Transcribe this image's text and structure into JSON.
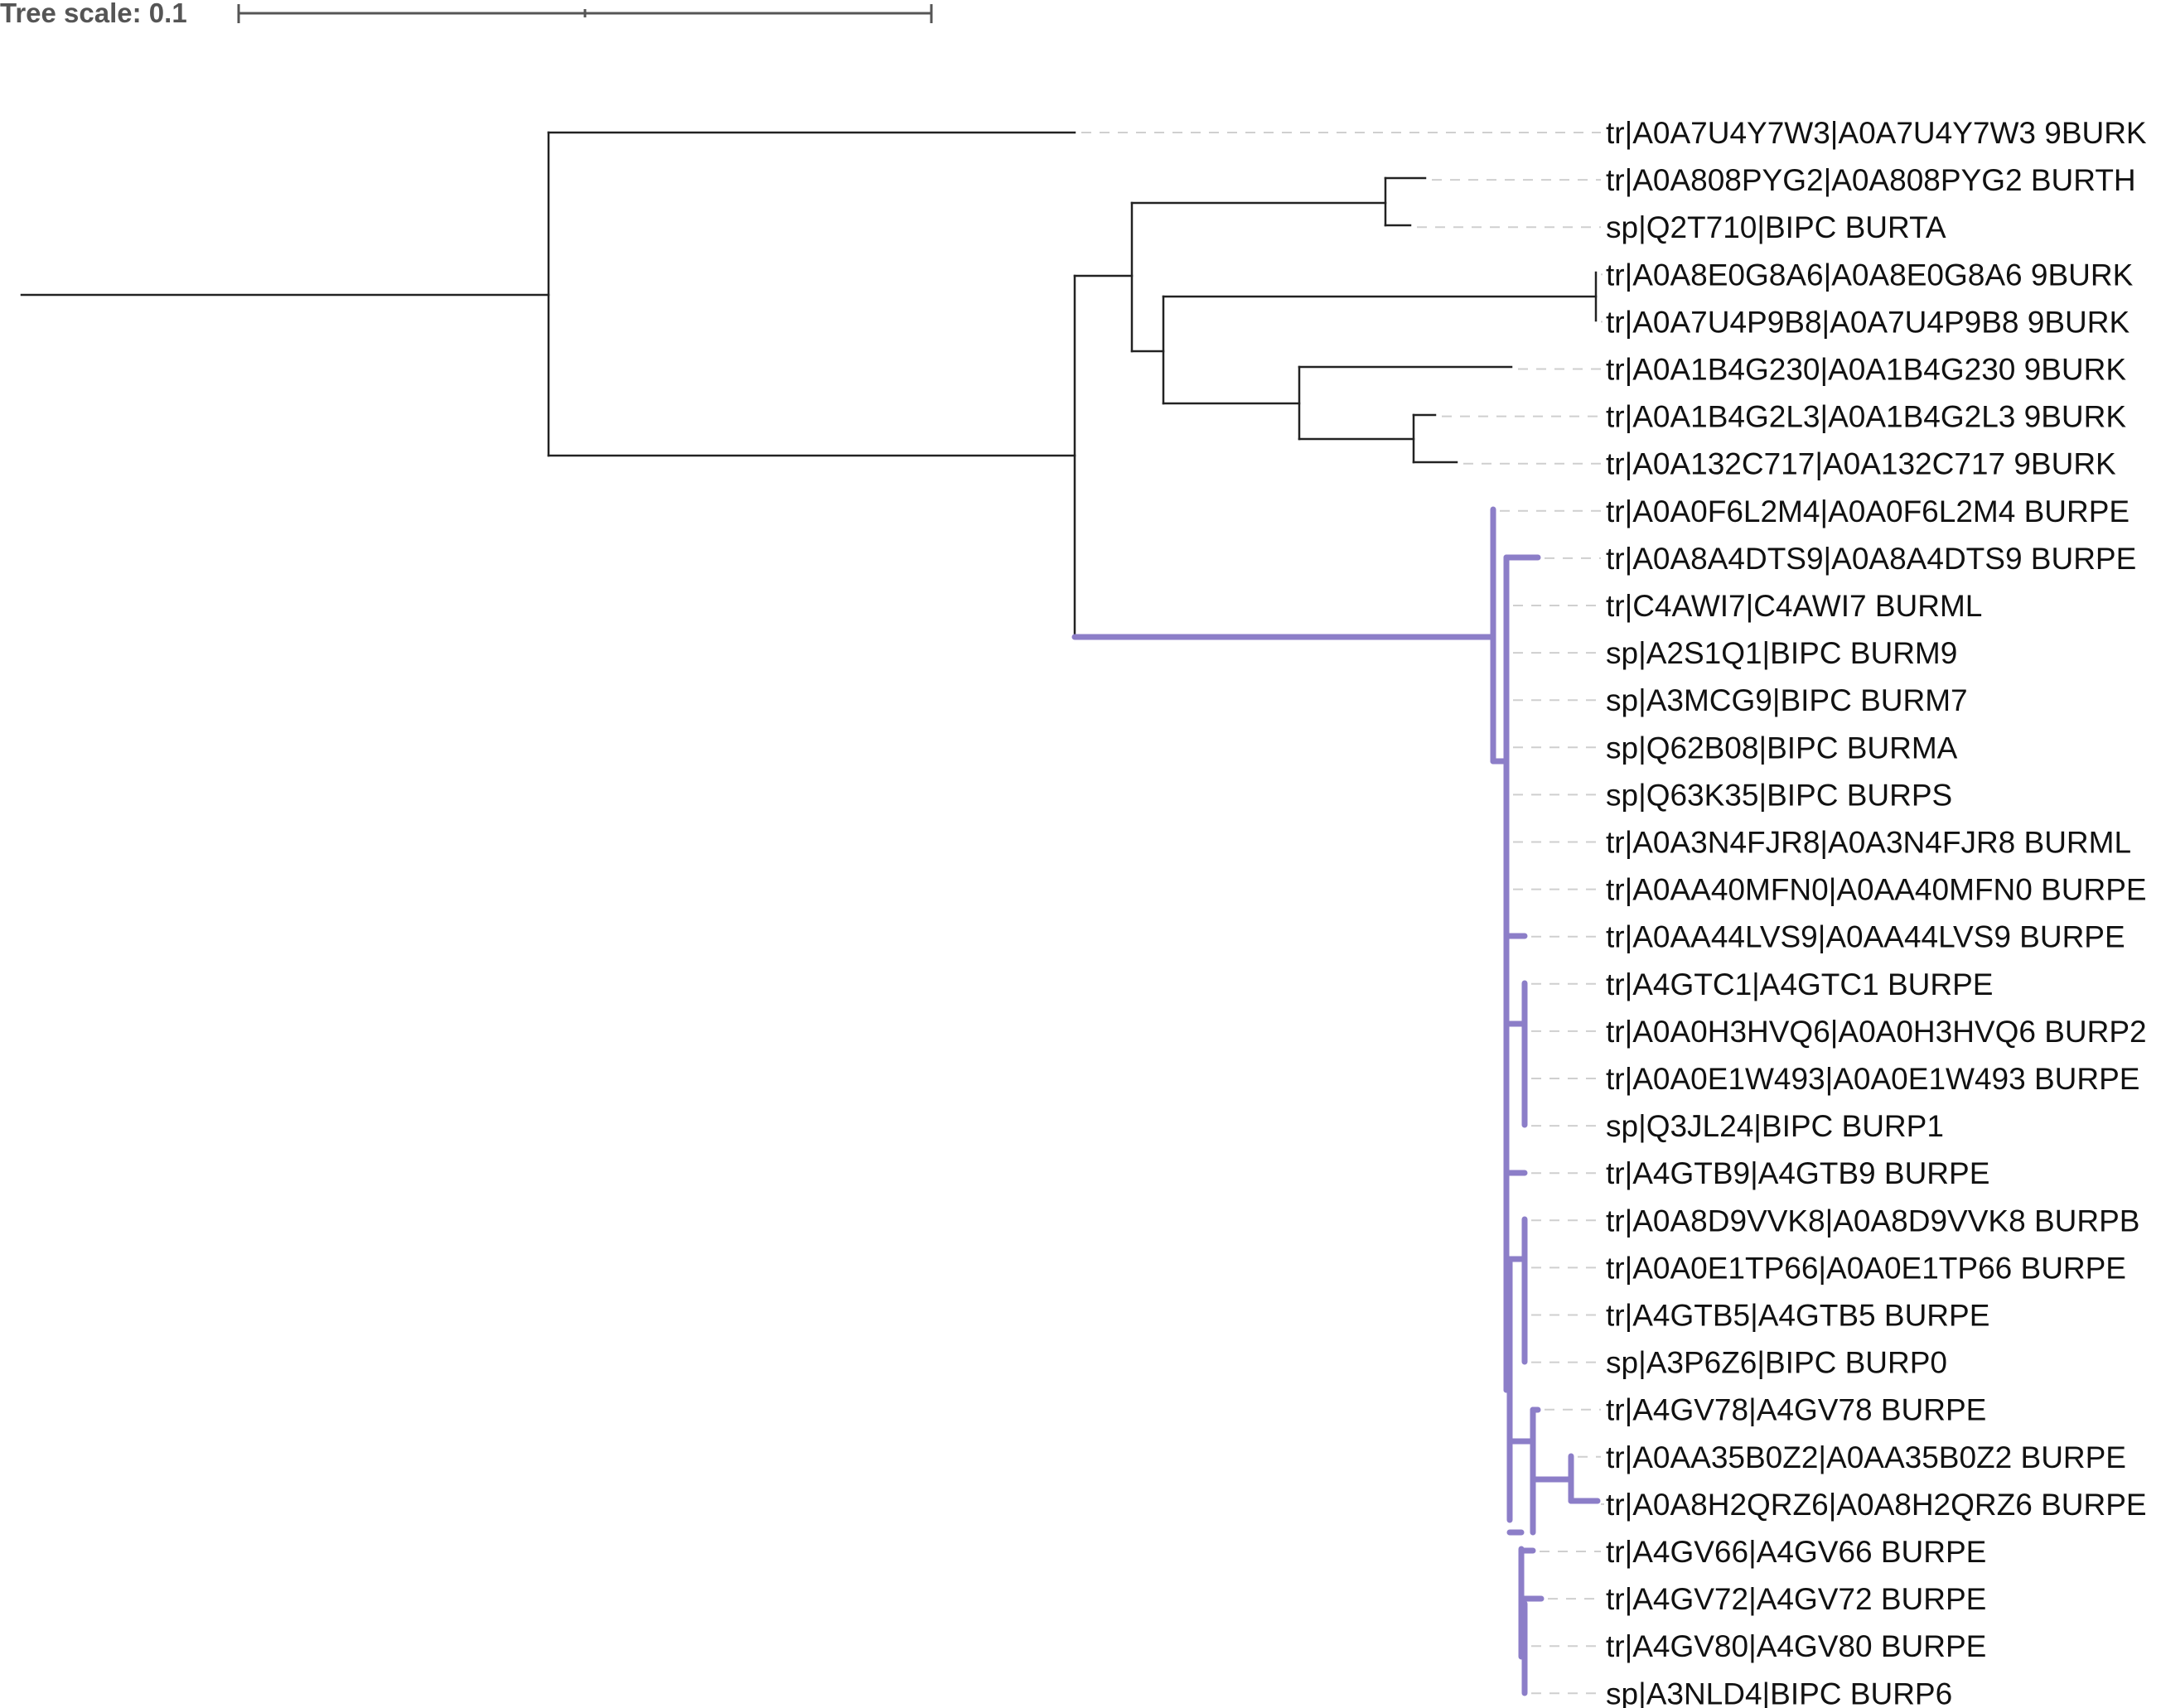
{
  "scale": {
    "label": "Tree scale: 0.1"
  },
  "colors": {
    "branch": "#222222",
    "highlight": "#8c7ec8",
    "guide": "#cfcfcf",
    "text": "#111111"
  },
  "tree": {
    "leaves": [
      "tr|A0A7U4Y7W3|A0A7U4Y7W3 9BURK",
      "tr|A0A808PYG2|A0A808PYG2 BURTH",
      "sp|Q2T710|BIPC BURTA",
      "tr|A0A8E0G8A6|A0A8E0G8A6 9BURK",
      "tr|A0A7U4P9B8|A0A7U4P9B8 9BURK",
      "tr|A0A1B4G230|A0A1B4G230 9BURK",
      "tr|A0A1B4G2L3|A0A1B4G2L3 9BURK",
      "tr|A0A132C717|A0A132C717 9BURK",
      "tr|A0A0F6L2M4|A0A0F6L2M4 BURPE",
      "tr|A0A8A4DTS9|A0A8A4DTS9 BURPE",
      "tr|C4AWI7|C4AWI7 BURML",
      "sp|A2S1Q1|BIPC BURM9",
      "sp|A3MCG9|BIPC BURM7",
      "sp|Q62B08|BIPC BURMA",
      "sp|Q63K35|BIPC BURPS",
      "tr|A0A3N4FJR8|A0A3N4FJR8 BURML",
      "tr|A0AA40MFN0|A0AA40MFN0 BURPE",
      "tr|A0AA44LVS9|A0AA44LVS9 BURPE",
      "tr|A4GTC1|A4GTC1 BURPE",
      "tr|A0A0H3HVQ6|A0A0H3HVQ6 BURP2",
      "tr|A0A0E1W493|A0A0E1W493 BURPE",
      "sp|Q3JL24|BIPC BURP1",
      "tr|A4GTB9|A4GTB9 BURPE",
      "tr|A0A8D9VVK8|A0A8D9VVK8 BURPB",
      "tr|A0A0E1TP66|A0A0E1TP66 BURPE",
      "tr|A4GTB5|A4GTB5 BURPE",
      "sp|A3P6Z6|BIPC BURP0",
      "tr|A4GV78|A4GV78 BURPE",
      "tr|A0AA35B0Z2|A0AA35B0Z2 BURPE",
      "tr|A0A8H2QRZ6|A0A8H2QRZ6 BURPE",
      "tr|A4GV66|A4GV66 BURPE",
      "tr|A4GV72|A4GV72 BURPE",
      "tr|A4GV80|A4GV80 BURPE",
      "sp|A3NLD4|BIPC BURP6"
    ]
  }
}
